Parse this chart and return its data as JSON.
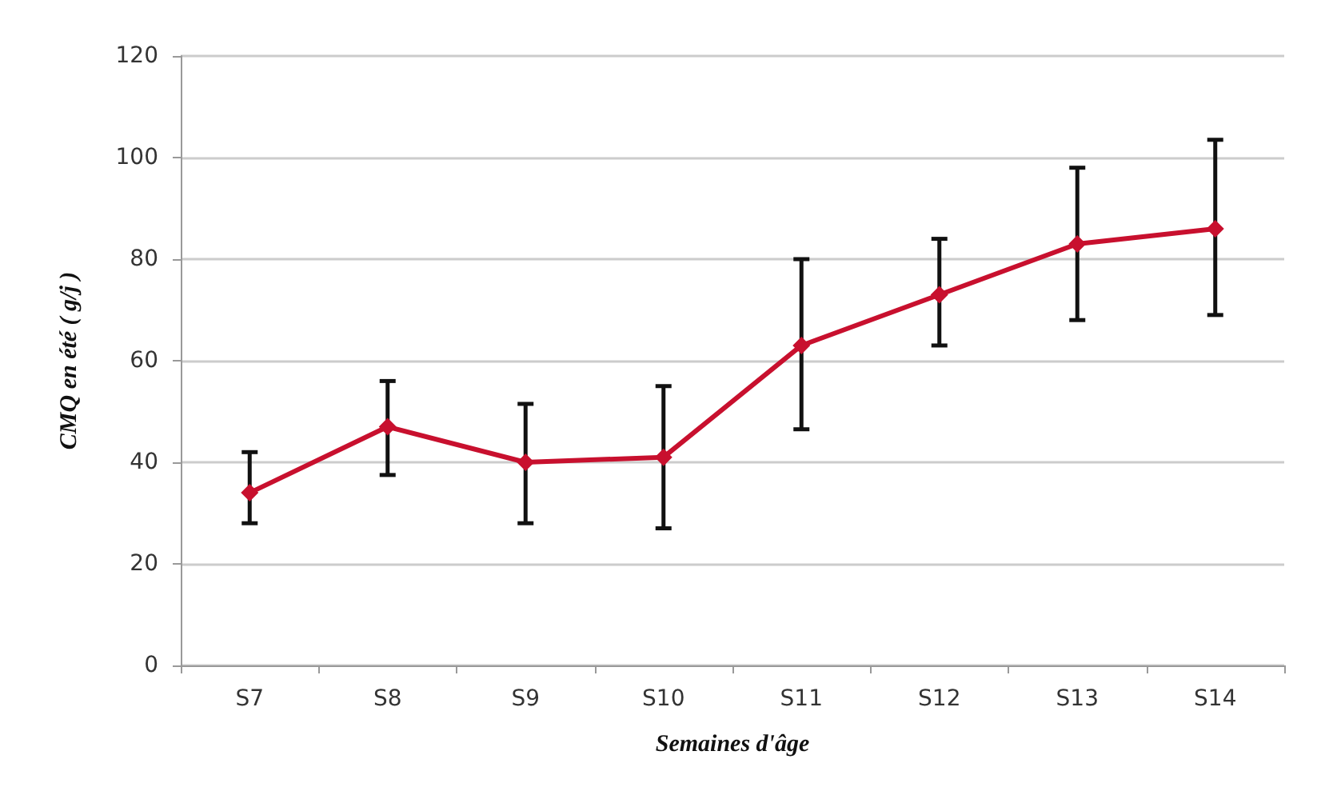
{
  "chart_data": {
    "type": "line",
    "xlabel": "Semaines d'âge",
    "ylabel": "CMQ en été ( g/j )",
    "categories": [
      "S7",
      "S8",
      "S9",
      "S10",
      "S11",
      "S12",
      "S13",
      "S14"
    ],
    "series": [
      {
        "color": "#c8102e",
        "values": [
          34,
          47,
          40,
          41,
          63,
          73,
          83,
          86
        ],
        "errors": [
          [
            28,
            42
          ],
          [
            37.5,
            56
          ],
          [
            28,
            51.5
          ],
          [
            27,
            55
          ],
          [
            46.5,
            80
          ],
          [
            63,
            84
          ],
          [
            68,
            98
          ],
          [
            69,
            103.5
          ]
        ]
      }
    ],
    "ylim": [
      0,
      120
    ],
    "yticks": [
      0,
      20,
      40,
      60,
      80,
      100,
      120
    ],
    "grid": "y",
    "legend": false,
    "marker": "diamond",
    "line_style": "solid"
  }
}
